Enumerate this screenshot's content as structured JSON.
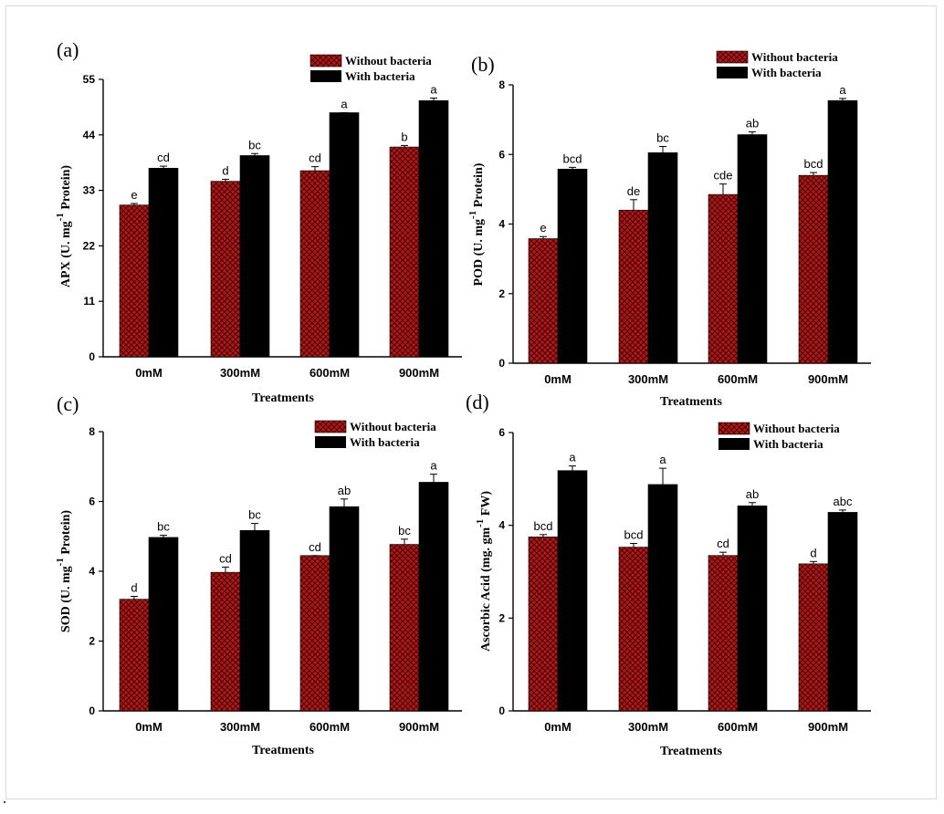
{
  "chart_data": [
    {
      "type": "bar",
      "panel_label": "(a)",
      "xlabel": "Treatments",
      "ylabel_main": "APX (U. mg",
      "ylabel_sup": "-1",
      "ylabel_tail": " Protein)",
      "ylim": [
        0,
        55
      ],
      "yticks": [
        0,
        11,
        22,
        33,
        44,
        55
      ],
      "categories": [
        "0mM",
        "300mM",
        "600mM",
        "900mM"
      ],
      "legend_position": "top-right",
      "series": [
        {
          "name": "Without bacteria",
          "color": "#b01818",
          "pattern": "crosshatch",
          "values": [
            30.1,
            34.8,
            36.9,
            41.6
          ],
          "errors": [
            0.3,
            0.4,
            0.8,
            0.3
          ],
          "letters": [
            "e",
            "d",
            "cd",
            "b"
          ]
        },
        {
          "name": "With bacteria",
          "color": "#000000",
          "values": [
            37.4,
            39.9,
            48.4,
            50.8
          ],
          "errors": [
            0.4,
            0.4,
            0.0,
            0.5
          ],
          "letters": [
            "cd",
            "bc",
            "a",
            "a"
          ]
        }
      ]
    },
    {
      "type": "bar",
      "panel_label": "(b)",
      "xlabel": "Treatments",
      "ylabel_main": "POD (U. mg",
      "ylabel_sup": "-1",
      "ylabel_tail": " Protein)",
      "ylim": [
        0,
        8
      ],
      "yticks": [
        0,
        2,
        4,
        6,
        8
      ],
      "categories": [
        "0mM",
        "300mM",
        "600mM",
        "900mM"
      ],
      "legend_position": "top-right",
      "series": [
        {
          "name": "Without bacteria",
          "color": "#b01818",
          "pattern": "crosshatch",
          "values": [
            3.58,
            4.4,
            4.85,
            5.4
          ],
          "errors": [
            0.06,
            0.3,
            0.3,
            0.08
          ],
          "letters": [
            "e",
            "de",
            "cde",
            "bcd"
          ]
        },
        {
          "name": "With bacteria",
          "color": "#000000",
          "values": [
            5.58,
            6.05,
            6.57,
            7.55
          ],
          "errors": [
            0.05,
            0.18,
            0.08,
            0.06
          ],
          "letters": [
            "bcd",
            "bc",
            "ab",
            "a"
          ]
        }
      ]
    },
    {
      "type": "bar",
      "panel_label": "(c)",
      "xlabel": "Treatments",
      "ylabel_main": "SOD (U. mg",
      "ylabel_sup": "-1",
      "ylabel_tail": " Protein)",
      "ylim": [
        0,
        8
      ],
      "yticks": [
        0,
        2,
        4,
        6,
        8
      ],
      "categories": [
        "0mM",
        "300mM",
        "600mM",
        "900mM"
      ],
      "legend_position": "top-right",
      "series": [
        {
          "name": "Without bacteria",
          "color": "#b01818",
          "pattern": "crosshatch",
          "values": [
            3.2,
            3.97,
            4.45,
            4.77
          ],
          "errors": [
            0.08,
            0.15,
            0.0,
            0.15
          ],
          "letters": [
            "d",
            "cd",
            "cd",
            "bc"
          ]
        },
        {
          "name": "With bacteria",
          "color": "#000000",
          "values": [
            4.97,
            5.17,
            5.85,
            6.55
          ],
          "errors": [
            0.06,
            0.2,
            0.22,
            0.23
          ],
          "letters": [
            "bc",
            "bc",
            "ab",
            "a"
          ]
        }
      ]
    },
    {
      "type": "bar",
      "panel_label": "(d)",
      "xlabel": "Treatments",
      "ylabel_main": "Ascorbic Acid (mg. gm",
      "ylabel_sup": "-1",
      "ylabel_tail": " FW)",
      "ylim": [
        0,
        6
      ],
      "yticks": [
        0,
        2,
        4,
        6
      ],
      "categories": [
        "0mM",
        "300mM",
        "600mM",
        "900mM"
      ],
      "legend_position": "top-right",
      "series": [
        {
          "name": "Without bacteria",
          "color": "#b01818",
          "pattern": "crosshatch",
          "values": [
            3.75,
            3.53,
            3.35,
            3.17
          ],
          "errors": [
            0.05,
            0.08,
            0.07,
            0.05
          ],
          "letters": [
            "bcd",
            "bcd",
            "cd",
            "d"
          ]
        },
        {
          "name": "With bacteria",
          "color": "#000000",
          "values": [
            5.18,
            4.88,
            4.42,
            4.28
          ],
          "errors": [
            0.1,
            0.35,
            0.07,
            0.05
          ],
          "letters": [
            "a",
            "a",
            "ab",
            "abc"
          ]
        }
      ]
    }
  ]
}
